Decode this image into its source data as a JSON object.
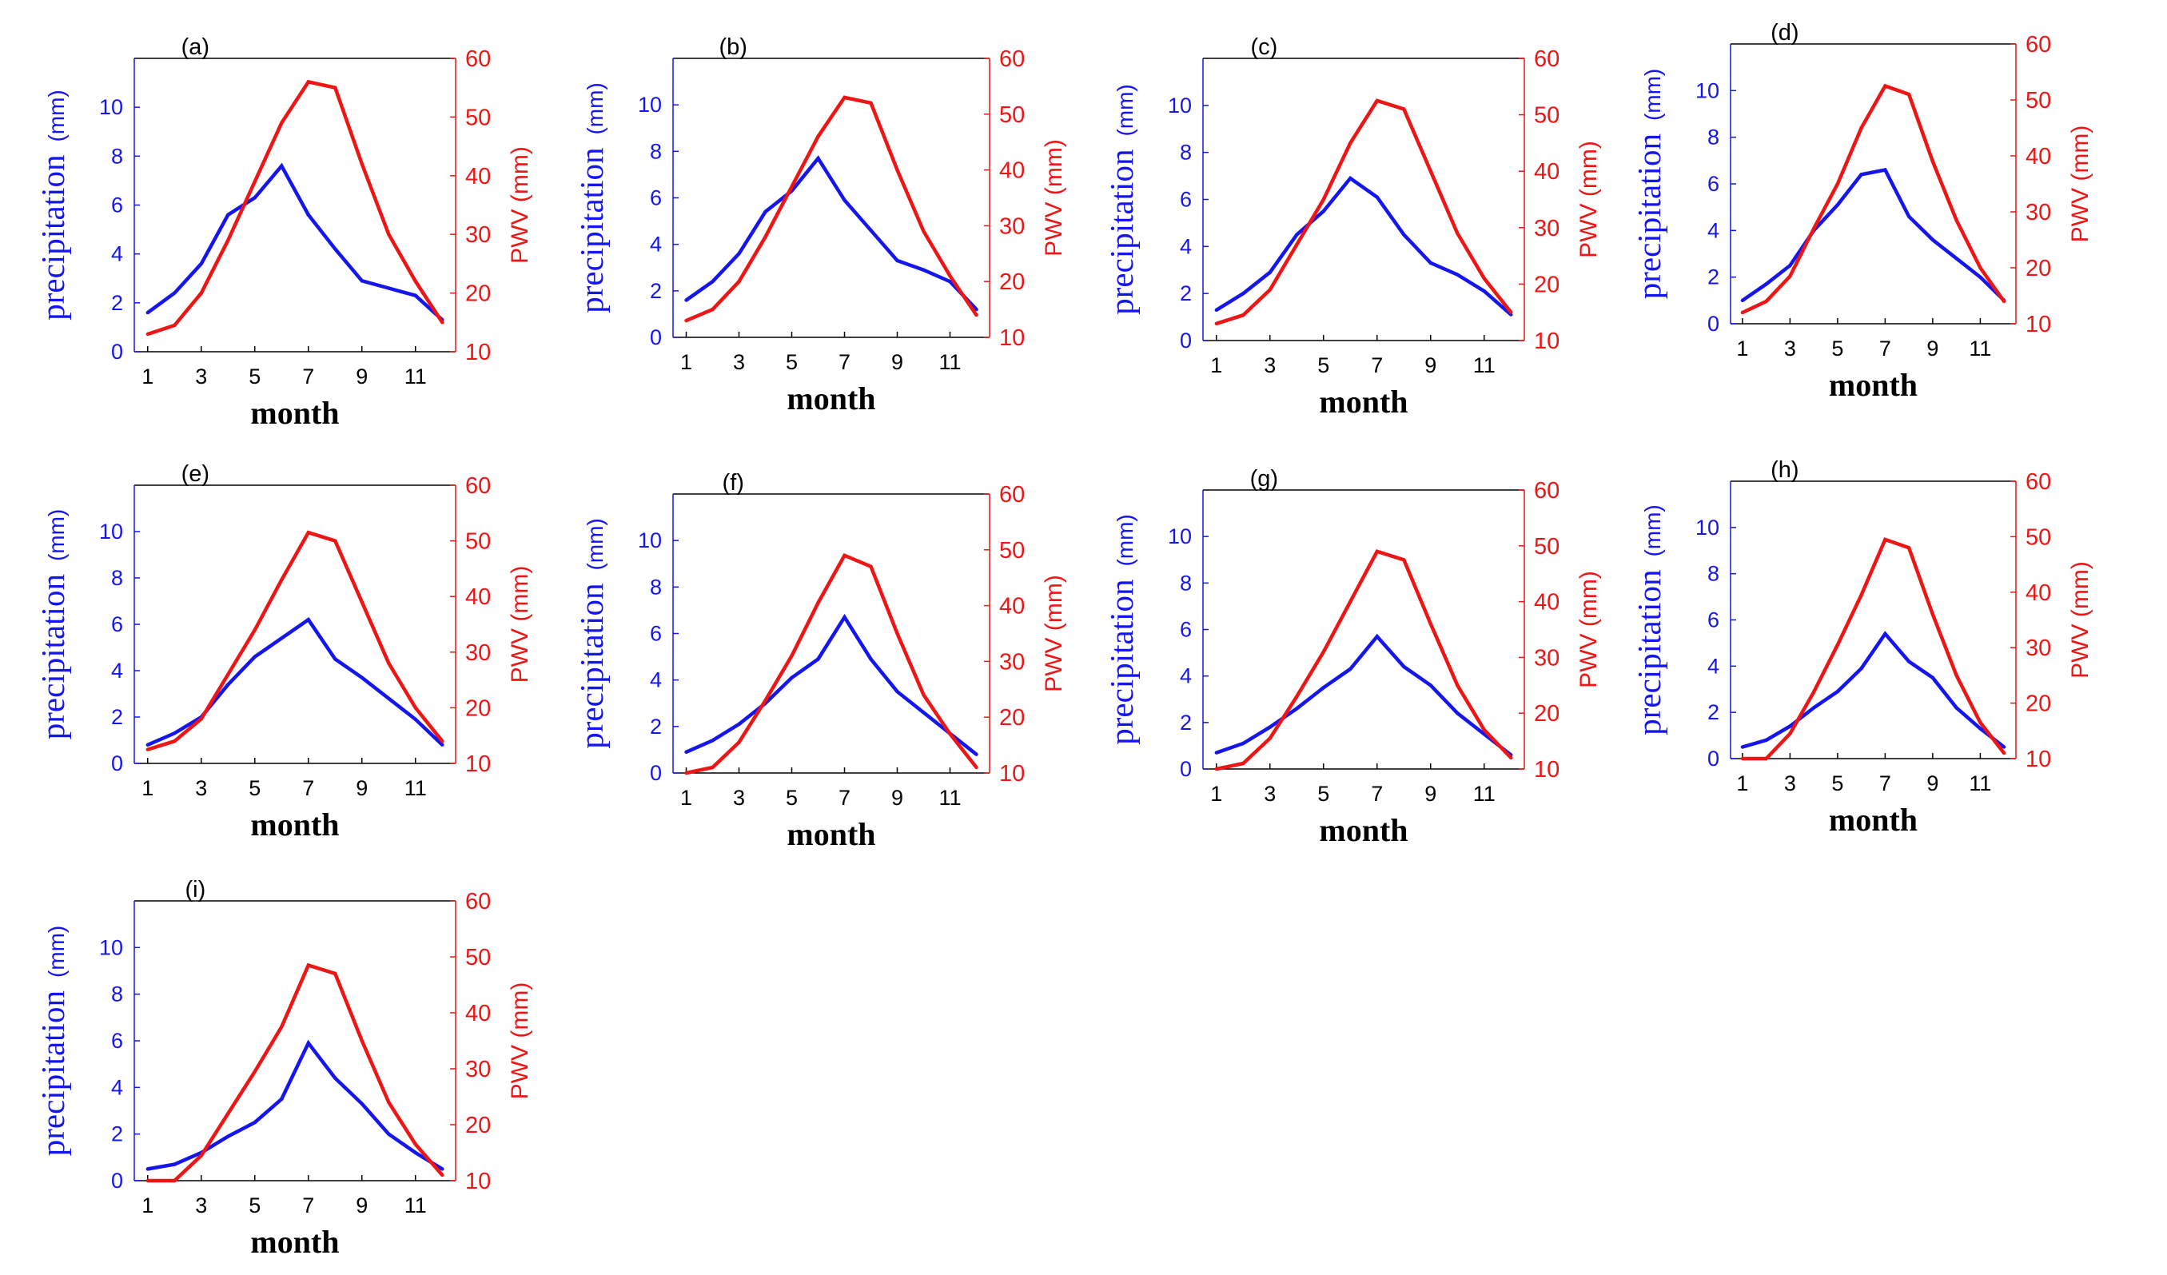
{
  "colors": {
    "precipitation": "#1515ee",
    "pwv": "#ee1515",
    "axes": "#000000"
  },
  "labels": {
    "x_axis": "month",
    "y_left": "precipitation",
    "y_left_unit": "(mm)",
    "y_right": "PWV (mm)"
  },
  "chart_data": [
    {
      "type": "line",
      "title": "(a)",
      "xlabel": "month",
      "ylabel": "precipitation (mm)",
      "y2label": "PWV (mm)",
      "xlim": [
        0.5,
        12.5
      ],
      "ylim": [
        0,
        12
      ],
      "y2lim": [
        10,
        60
      ],
      "xticks": [
        "1",
        "3",
        "5",
        "7",
        "9",
        "11"
      ],
      "yticks": [
        "0",
        "2",
        "4",
        "6",
        "8",
        "10"
      ],
      "y2ticks": [
        "10",
        "20",
        "30",
        "40",
        "50",
        "60"
      ],
      "x": [
        1,
        2,
        3,
        4,
        5,
        6,
        7,
        8,
        9,
        10,
        11,
        12
      ],
      "series": [
        {
          "name": "precipitation",
          "axis": "left",
          "values": [
            1.6,
            2.4,
            3.6,
            5.6,
            6.3,
            7.6,
            5.6,
            4.2,
            2.9,
            2.6,
            2.3,
            1.3
          ]
        },
        {
          "name": "PWV",
          "axis": "right",
          "values": [
            13,
            14.5,
            20,
            29,
            39,
            49,
            56,
            55,
            42,
            30,
            22,
            15
          ]
        }
      ]
    },
    {
      "type": "line",
      "title": "(b)",
      "xlabel": "month",
      "ylabel": "precipitation (mm)",
      "y2label": "PWV (mm)",
      "xlim": [
        0.5,
        12.5
      ],
      "ylim": [
        0,
        12
      ],
      "y2lim": [
        10,
        60
      ],
      "xticks": [
        "1",
        "3",
        "5",
        "7",
        "9",
        "11"
      ],
      "yticks": [
        "0",
        "2",
        "4",
        "6",
        "8",
        "10"
      ],
      "y2ticks": [
        "10",
        "20",
        "30",
        "40",
        "50",
        "60"
      ],
      "x": [
        1,
        2,
        3,
        4,
        5,
        6,
        7,
        8,
        9,
        10,
        11,
        12
      ],
      "series": [
        {
          "name": "precipitation",
          "axis": "left",
          "values": [
            1.6,
            2.4,
            3.6,
            5.4,
            6.3,
            7.7,
            5.9,
            4.6,
            3.3,
            2.9,
            2.4,
            1.2
          ]
        },
        {
          "name": "PWV",
          "axis": "right",
          "values": [
            13,
            15,
            20,
            28,
            37,
            46,
            53,
            52,
            40,
            29,
            21,
            14
          ]
        }
      ]
    },
    {
      "type": "line",
      "title": "(c)",
      "xlabel": "month",
      "ylabel": "precipitation (mm)",
      "y2label": "PWV (mm)",
      "xlim": [
        0.5,
        12.5
      ],
      "ylim": [
        0,
        12
      ],
      "y2lim": [
        10,
        60
      ],
      "xticks": [
        "1",
        "3",
        "5",
        "7",
        "9",
        "11"
      ],
      "yticks": [
        "0",
        "2",
        "4",
        "6",
        "8",
        "10"
      ],
      "y2ticks": [
        "10",
        "20",
        "30",
        "40",
        "50",
        "60"
      ],
      "x": [
        1,
        2,
        3,
        4,
        5,
        6,
        7,
        8,
        9,
        10,
        11,
        12
      ],
      "series": [
        {
          "name": "precipitation",
          "axis": "left",
          "values": [
            1.3,
            2.0,
            2.9,
            4.5,
            5.5,
            6.9,
            6.1,
            4.5,
            3.3,
            2.8,
            2.1,
            1.1
          ]
        },
        {
          "name": "PWV",
          "axis": "right",
          "values": [
            13,
            14.5,
            19,
            27,
            35,
            45,
            52.5,
            51,
            40,
            29,
            21,
            15
          ]
        }
      ]
    },
    {
      "type": "line",
      "title": "(d)",
      "xlabel": "month",
      "ylabel": "precipitation (mm)",
      "y2label": "PWV (mm)",
      "xlim": [
        0.5,
        12.5
      ],
      "ylim": [
        0,
        12
      ],
      "y2lim": [
        10,
        60
      ],
      "xticks": [
        "1",
        "3",
        "5",
        "7",
        "9",
        "11"
      ],
      "yticks": [
        "0",
        "2",
        "4",
        "6",
        "8",
        "10"
      ],
      "y2ticks": [
        "10",
        "20",
        "30",
        "40",
        "50",
        "60"
      ],
      "x": [
        1,
        2,
        3,
        4,
        5,
        6,
        7,
        8,
        9,
        10,
        11,
        12
      ],
      "series": [
        {
          "name": "precipitation",
          "axis": "left",
          "values": [
            1.0,
            1.7,
            2.5,
            4.0,
            5.1,
            6.4,
            6.6,
            4.6,
            3.6,
            2.8,
            2.0,
            1.0
          ]
        },
        {
          "name": "PWV",
          "axis": "right",
          "values": [
            12,
            14,
            18.5,
            27,
            35,
            45,
            52.5,
            51,
            39,
            28.5,
            20,
            14
          ]
        }
      ]
    },
    {
      "type": "line",
      "title": "(e)",
      "xlabel": "month",
      "ylabel": "precipitation (mm)",
      "y2label": "PWV (mm)",
      "xlim": [
        0.5,
        12.5
      ],
      "ylim": [
        0,
        12
      ],
      "y2lim": [
        10,
        60
      ],
      "xticks": [
        "1",
        "3",
        "5",
        "7",
        "9",
        "11"
      ],
      "yticks": [
        "0",
        "2",
        "4",
        "6",
        "8",
        "10"
      ],
      "y2ticks": [
        "10",
        "20",
        "30",
        "40",
        "50",
        "60"
      ],
      "x": [
        1,
        2,
        3,
        4,
        5,
        6,
        7,
        8,
        9,
        10,
        11,
        12
      ],
      "series": [
        {
          "name": "precipitation",
          "axis": "left",
          "values": [
            0.8,
            1.3,
            2.0,
            3.4,
            4.6,
            5.4,
            6.2,
            4.5,
            3.7,
            2.8,
            1.9,
            0.8
          ]
        },
        {
          "name": "PWV",
          "axis": "right",
          "values": [
            12.5,
            14,
            18,
            26,
            34,
            43,
            51.5,
            50,
            39,
            28,
            20,
            14
          ]
        }
      ]
    },
    {
      "type": "line",
      "title": "(f)",
      "xlabel": "month",
      "ylabel": "precipitation (mm)",
      "y2label": "PWV (mm)",
      "xlim": [
        0.5,
        12.5
      ],
      "ylim": [
        0,
        12
      ],
      "y2lim": [
        10,
        60
      ],
      "xticks": [
        "1",
        "3",
        "5",
        "7",
        "9",
        "11"
      ],
      "yticks": [
        "0",
        "2",
        "4",
        "6",
        "8",
        "10"
      ],
      "y2ticks": [
        "10",
        "20",
        "30",
        "40",
        "50",
        "60"
      ],
      "x": [
        1,
        2,
        3,
        4,
        5,
        6,
        7,
        8,
        9,
        10,
        11,
        12
      ],
      "series": [
        {
          "name": "precipitation",
          "axis": "left",
          "values": [
            0.9,
            1.4,
            2.1,
            3.0,
            4.1,
            4.9,
            6.7,
            4.9,
            3.5,
            2.6,
            1.7,
            0.8
          ]
        },
        {
          "name": "PWV",
          "axis": "right",
          "values": [
            9.5,
            11,
            15.5,
            23,
            31,
            40.5,
            49,
            47,
            35,
            24,
            17,
            11
          ]
        }
      ]
    },
    {
      "type": "line",
      "title": "(g)",
      "xlabel": "month",
      "ylabel": "precipitation (mm)",
      "y2label": "PWV (mm)",
      "xlim": [
        0.5,
        12.5
      ],
      "ylim": [
        0,
        12
      ],
      "y2lim": [
        10,
        60
      ],
      "xticks": [
        "1",
        "3",
        "5",
        "7",
        "9",
        "11"
      ],
      "yticks": [
        "0",
        "2",
        "4",
        "6",
        "8",
        "10"
      ],
      "y2ticks": [
        "10",
        "20",
        "30",
        "40",
        "50",
        "60"
      ],
      "x": [
        1,
        2,
        3,
        4,
        5,
        6,
        7,
        8,
        9,
        10,
        11,
        12
      ],
      "series": [
        {
          "name": "precipitation",
          "axis": "left",
          "values": [
            0.7,
            1.1,
            1.8,
            2.6,
            3.5,
            4.3,
            5.7,
            4.4,
            3.6,
            2.4,
            1.5,
            0.6
          ]
        },
        {
          "name": "PWV",
          "axis": "right",
          "values": [
            9.5,
            11,
            15.5,
            23,
            31,
            40,
            49,
            47.5,
            36,
            25,
            17,
            12
          ]
        }
      ]
    },
    {
      "type": "line",
      "title": "(h)",
      "xlabel": "month",
      "ylabel": "precipitation (mm)",
      "y2label": "PWV (mm)",
      "xlim": [
        0.5,
        12.5
      ],
      "ylim": [
        0,
        12
      ],
      "y2lim": [
        10,
        60
      ],
      "xticks": [
        "1",
        "3",
        "5",
        "7",
        "9",
        "11"
      ],
      "yticks": [
        "0",
        "2",
        "4",
        "6",
        "8",
        "10"
      ],
      "y2ticks": [
        "10",
        "20",
        "30",
        "40",
        "50",
        "60"
      ],
      "x": [
        1,
        2,
        3,
        4,
        5,
        6,
        7,
        8,
        9,
        10,
        11,
        12
      ],
      "series": [
        {
          "name": "precipitation",
          "axis": "left",
          "values": [
            0.5,
            0.8,
            1.4,
            2.2,
            2.9,
            3.9,
            5.4,
            4.2,
            3.5,
            2.2,
            1.3,
            0.5
          ]
        },
        {
          "name": "PWV",
          "axis": "right",
          "values": [
            9,
            10,
            14.5,
            22,
            30.5,
            39.5,
            49.5,
            48,
            36,
            25,
            16.5,
            11
          ]
        }
      ]
    },
    {
      "type": "line",
      "title": "(i)",
      "xlabel": "month",
      "ylabel": "precipitation (mm)",
      "y2label": "PWV (mm)",
      "xlim": [
        0.5,
        12.5
      ],
      "ylim": [
        0,
        12
      ],
      "y2lim": [
        10,
        60
      ],
      "xticks": [
        "1",
        "3",
        "5",
        "7",
        "9",
        "11"
      ],
      "yticks": [
        "0",
        "2",
        "4",
        "6",
        "8",
        "10"
      ],
      "y2ticks": [
        "10",
        "20",
        "30",
        "40",
        "50",
        "60"
      ],
      "x": [
        1,
        2,
        3,
        4,
        5,
        6,
        7,
        8,
        9,
        10,
        11,
        12
      ],
      "series": [
        {
          "name": "precipitation",
          "axis": "left",
          "values": [
            0.5,
            0.7,
            1.2,
            1.9,
            2.5,
            3.5,
            5.9,
            4.4,
            3.3,
            2.0,
            1.2,
            0.5
          ]
        },
        {
          "name": "PWV",
          "axis": "right",
          "values": [
            9,
            10,
            14.5,
            22,
            29.5,
            37.5,
            48.5,
            47,
            35,
            24,
            16.5,
            11
          ]
        }
      ]
    }
  ]
}
